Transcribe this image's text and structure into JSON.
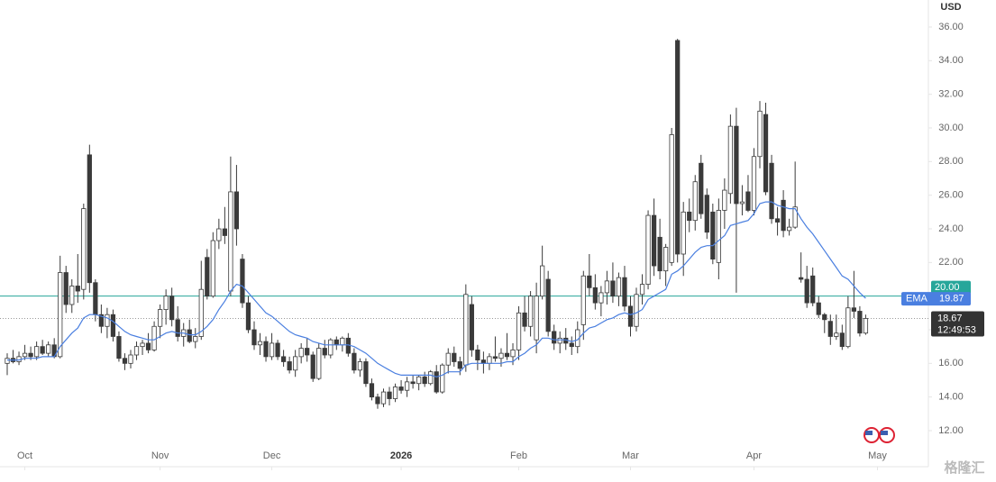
{
  "chart_data": {
    "type": "candlestick",
    "currency": "USD",
    "up_color": "#ffffff",
    "down_color": "#3a3a3a",
    "wick_color": "#3a3a3a",
    "xlim": [
      0,
      149
    ],
    "xticks": [
      {
        "value": 3,
        "label": "Oct"
      },
      {
        "value": 26,
        "label": "Nov"
      },
      {
        "value": 45,
        "label": "Dec"
      },
      {
        "value": 67,
        "label": "2026"
      },
      {
        "value": 87,
        "label": "Feb"
      },
      {
        "value": 106,
        "label": "Mar"
      },
      {
        "value": 127,
        "label": "Apr"
      },
      {
        "value": 148,
        "label": "May"
      }
    ],
    "ylim": [
      12,
      36
    ],
    "yticks": [
      {
        "value": 12,
        "label": "12.00"
      },
      {
        "value": 14,
        "label": "14.00"
      },
      {
        "value": 16,
        "label": "16.00"
      },
      {
        "value": 18,
        "label": "18.00"
      },
      {
        "value": 20,
        "label": "20.00"
      },
      {
        "value": 22,
        "label": "22.00"
      },
      {
        "value": 24,
        "label": "24.00"
      },
      {
        "value": 26,
        "label": "26.00"
      },
      {
        "value": 28,
        "label": "28.00"
      },
      {
        "value": 30,
        "label": "30.00"
      },
      {
        "value": 32,
        "label": "32.00"
      },
      {
        "value": 34,
        "label": "34.00"
      },
      {
        "value": 36,
        "label": "36.00"
      }
    ],
    "ohlc": [
      [
        16.0,
        16.6,
        15.3,
        16.3
      ],
      [
        16.3,
        16.8,
        16.0,
        16.1
      ],
      [
        16.1,
        16.7,
        15.9,
        16.4
      ],
      [
        16.4,
        17.1,
        16.2,
        16.6
      ],
      [
        16.6,
        17.0,
        16.2,
        16.4
      ],
      [
        16.4,
        17.3,
        16.2,
        17.0
      ],
      [
        17.0,
        17.4,
        16.5,
        16.6
      ],
      [
        16.6,
        17.3,
        16.4,
        17.1
      ],
      [
        17.1,
        17.5,
        16.3,
        16.4
      ],
      [
        16.4,
        22.4,
        16.3,
        21.4
      ],
      [
        21.4,
        21.8,
        19.0,
        19.5
      ],
      [
        19.5,
        21.0,
        19.0,
        20.6
      ],
      [
        20.6,
        22.5,
        19.6,
        20.3
      ],
      [
        20.4,
        25.5,
        19.8,
        25.2
      ],
      [
        28.4,
        29.0,
        20.2,
        20.8
      ],
      [
        20.8,
        21.0,
        18.5,
        18.9
      ],
      [
        18.9,
        19.5,
        17.8,
        18.2
      ],
      [
        18.2,
        19.3,
        17.5,
        18.9
      ],
      [
        18.9,
        19.2,
        17.3,
        17.6
      ],
      [
        17.6,
        17.9,
        16.1,
        16.3
      ],
      [
        16.3,
        16.6,
        15.6,
        16.0
      ],
      [
        16.0,
        16.8,
        15.7,
        16.5
      ],
      [
        16.5,
        17.3,
        16.2,
        17.0
      ],
      [
        17.0,
        17.4,
        16.5,
        17.2
      ],
      [
        17.2,
        17.8,
        16.6,
        16.8
      ],
      [
        16.8,
        18.5,
        16.7,
        18.2
      ],
      [
        18.2,
        19.5,
        17.5,
        19.2
      ],
      [
        19.2,
        20.4,
        18.3,
        20.0
      ],
      [
        20.0,
        20.5,
        18.2,
        18.6
      ],
      [
        18.6,
        19.4,
        17.3,
        17.6
      ],
      [
        17.6,
        18.4,
        17.0,
        18.0
      ],
      [
        18.0,
        18.6,
        17.2,
        17.3
      ],
      [
        17.3,
        18.1,
        16.9,
        17.6
      ],
      [
        17.6,
        22.1,
        17.4,
        20.4
      ],
      [
        22.3,
        22.8,
        19.8,
        20.0
      ],
      [
        20.0,
        23.8,
        19.9,
        23.3
      ],
      [
        23.3,
        24.6,
        22.8,
        24.0
      ],
      [
        24.0,
        25.3,
        23.1,
        23.6
      ],
      [
        20.3,
        28.3,
        20.0,
        26.2
      ],
      [
        26.2,
        27.8,
        23.0,
        24.0
      ],
      [
        22.2,
        22.5,
        19.3,
        19.6
      ],
      [
        19.6,
        20.0,
        17.8,
        18.0
      ],
      [
        18.0,
        18.5,
        16.8,
        17.1
      ],
      [
        17.1,
        17.8,
        16.5,
        17.3
      ],
      [
        17.3,
        17.6,
        16.1,
        16.4
      ],
      [
        16.4,
        17.8,
        16.2,
        17.2
      ],
      [
        17.2,
        17.4,
        16.2,
        16.4
      ],
      [
        16.4,
        16.8,
        15.8,
        16.1
      ],
      [
        16.1,
        16.4,
        15.4,
        15.6
      ],
      [
        15.6,
        16.8,
        15.2,
        16.4
      ],
      [
        16.4,
        17.2,
        16.0,
        16.9
      ],
      [
        16.9,
        17.5,
        16.1,
        16.5
      ],
      [
        16.5,
        16.7,
        14.9,
        15.1
      ],
      [
        15.1,
        17.2,
        15.0,
        16.9
      ],
      [
        16.9,
        17.4,
        16.3,
        16.5
      ],
      [
        16.5,
        17.5,
        16.3,
        17.4
      ],
      [
        17.4,
        17.6,
        16.8,
        17.1
      ],
      [
        17.1,
        17.6,
        16.7,
        17.5
      ],
      [
        17.5,
        17.8,
        16.4,
        16.6
      ],
      [
        16.6,
        16.9,
        15.4,
        15.6
      ],
      [
        15.6,
        16.3,
        15.2,
        16.1
      ],
      [
        16.1,
        16.3,
        14.6,
        14.8
      ],
      [
        14.8,
        15.1,
        13.8,
        14.0
      ],
      [
        14.0,
        14.2,
        13.3,
        13.6
      ],
      [
        13.6,
        14.5,
        13.4,
        14.3
      ],
      [
        14.3,
        14.6,
        13.5,
        13.9
      ],
      [
        13.9,
        14.8,
        13.7,
        14.6
      ],
      [
        14.6,
        15.0,
        14.2,
        14.4
      ],
      [
        14.4,
        15.2,
        14.0,
        14.9
      ],
      [
        14.9,
        15.3,
        14.5,
        14.8
      ],
      [
        14.8,
        15.3,
        14.4,
        15.2
      ],
      [
        15.2,
        15.5,
        14.6,
        14.8
      ],
      [
        14.8,
        15.6,
        14.7,
        15.5
      ],
      [
        15.5,
        15.9,
        14.2,
        14.3
      ],
      [
        14.3,
        16.0,
        14.2,
        15.9
      ],
      [
        15.9,
        16.9,
        15.4,
        16.6
      ],
      [
        16.6,
        17.0,
        15.8,
        16.1
      ],
      [
        16.1,
        16.4,
        15.3,
        15.7
      ],
      [
        15.9,
        20.7,
        15.5,
        20.1
      ],
      [
        19.5,
        20.0,
        16.4,
        16.8
      ],
      [
        16.8,
        17.1,
        15.6,
        16.2
      ],
      [
        16.2,
        16.7,
        15.4,
        16.0
      ],
      [
        16.0,
        16.6,
        15.6,
        16.4
      ],
      [
        16.4,
        17.6,
        16.1,
        16.3
      ],
      [
        16.3,
        16.9,
        15.8,
        16.6
      ],
      [
        16.6,
        17.8,
        16.2,
        16.4
      ],
      [
        16.4,
        17.2,
        15.9,
        16.8
      ],
      [
        16.8,
        19.4,
        16.2,
        19.0
      ],
      [
        19.0,
        20.0,
        17.9,
        18.2
      ],
      [
        18.2,
        20.3,
        17.6,
        20.0
      ],
      [
        17.4,
        20.8,
        16.6,
        20.0
      ],
      [
        20.0,
        23.0,
        19.8,
        21.8
      ],
      [
        21.0,
        21.5,
        17.6,
        17.9
      ],
      [
        17.9,
        18.3,
        16.8,
        17.2
      ],
      [
        17.2,
        17.9,
        16.6,
        17.5
      ],
      [
        17.5,
        18.1,
        16.8,
        17.2
      ],
      [
        17.2,
        17.6,
        16.5,
        17.0
      ],
      [
        17.0,
        18.5,
        16.6,
        18.0
      ],
      [
        18.3,
        21.5,
        17.4,
        21.2
      ],
      [
        21.2,
        22.5,
        20.0,
        20.5
      ],
      [
        20.5,
        21.3,
        19.2,
        19.6
      ],
      [
        19.6,
        20.6,
        18.8,
        20.2
      ],
      [
        20.2,
        21.5,
        19.5,
        20.9
      ],
      [
        20.9,
        22.0,
        19.6,
        20.0
      ],
      [
        20.0,
        21.4,
        19.4,
        21.1
      ],
      [
        21.1,
        21.8,
        19.1,
        19.4
      ],
      [
        19.4,
        20.0,
        17.6,
        18.2
      ],
      [
        18.2,
        20.5,
        17.9,
        20.1
      ],
      [
        20.1,
        21.3,
        19.5,
        20.7
      ],
      [
        20.7,
        25.1,
        20.4,
        24.8
      ],
      [
        24.8,
        25.8,
        21.2,
        21.8
      ],
      [
        23.5,
        24.6,
        21.0,
        21.5
      ],
      [
        21.5,
        23.1,
        20.6,
        22.9
      ],
      [
        22.0,
        30.0,
        21.8,
        29.6
      ],
      [
        35.2,
        35.3,
        22.0,
        22.5
      ],
      [
        22.5,
        25.6,
        21.2,
        25.0
      ],
      [
        25.0,
        25.8,
        23.8,
        24.5
      ],
      [
        24.5,
        27.2,
        23.9,
        26.8
      ],
      [
        27.9,
        28.4,
        24.6,
        24.9
      ],
      [
        26.0,
        26.4,
        23.4,
        23.8
      ],
      [
        25.0,
        25.5,
        21.9,
        22.2
      ],
      [
        22.0,
        25.8,
        21.0,
        25.1
      ],
      [
        25.1,
        27.0,
        24.0,
        26.3
      ],
      [
        26.1,
        30.8,
        25.5,
        30.1
      ],
      [
        30.1,
        31.2,
        20.2,
        25.5
      ],
      [
        25.5,
        26.6,
        24.8,
        25.6
      ],
      [
        26.2,
        27.2,
        25.0,
        25.1
      ],
      [
        25.1,
        28.8,
        24.8,
        28.3
      ],
      [
        28.3,
        31.6,
        27.6,
        31.0
      ],
      [
        30.8,
        31.5,
        26.0,
        26.2
      ],
      [
        27.9,
        28.4,
        24.3,
        24.6
      ],
      [
        24.6,
        25.3,
        23.6,
        24.4
      ],
      [
        25.7,
        26.3,
        23.5,
        23.9
      ],
      [
        23.9,
        24.6,
        23.6,
        24.1
      ],
      [
        24.1,
        28.0,
        24.0,
        25.3
      ],
      [
        21.1,
        22.6,
        20.8,
        21.0
      ],
      [
        21.0,
        21.8,
        19.3,
        19.6
      ],
      [
        21.2,
        21.7,
        19.4,
        19.6
      ],
      [
        19.6,
        20.0,
        18.7,
        18.9
      ],
      [
        18.9,
        19.0,
        17.8,
        18.6
      ],
      [
        18.5,
        18.9,
        17.1,
        17.6
      ],
      [
        17.6,
        18.9,
        17.4,
        17.8
      ],
      [
        17.8,
        18.3,
        16.8,
        17.0
      ],
      [
        17.0,
        20.0,
        16.9,
        19.3
      ],
      [
        19.3,
        21.5,
        18.7,
        19.1
      ],
      [
        19.1,
        19.4,
        17.6,
        17.8
      ],
      [
        17.8,
        18.9,
        17.7,
        18.67
      ]
    ],
    "ema": {
      "name": "EMA",
      "color": "#4a7fe0",
      "last": 19.87,
      "values": [
        16.2,
        16.2,
        16.2,
        16.3,
        16.3,
        16.3,
        16.4,
        16.4,
        16.4,
        17.0,
        17.4,
        17.8,
        18.1,
        18.7,
        18.9,
        18.9,
        18.8,
        18.7,
        18.5,
        18.2,
        17.9,
        17.7,
        17.6,
        17.5,
        17.4,
        17.4,
        17.6,
        17.8,
        17.9,
        17.8,
        17.8,
        17.7,
        17.7,
        17.9,
        18.2,
        18.6,
        19.2,
        19.7,
        20.3,
        20.7,
        20.6,
        20.2,
        19.8,
        19.4,
        19.0,
        18.8,
        18.5,
        18.2,
        17.9,
        17.7,
        17.6,
        17.5,
        17.3,
        17.2,
        17.1,
        17.1,
        17.1,
        17.1,
        17.1,
        17.0,
        16.8,
        16.6,
        16.3,
        16.0,
        15.8,
        15.6,
        15.4,
        15.3,
        15.3,
        15.3,
        15.3,
        15.3,
        15.3,
        15.2,
        15.3,
        15.5,
        15.5,
        15.5,
        15.9,
        16.0,
        16.0,
        16.0,
        16.0,
        16.0,
        16.0,
        16.1,
        16.1,
        16.4,
        16.6,
        16.9,
        17.1,
        17.5,
        17.5,
        17.4,
        17.4,
        17.4,
        17.3,
        17.4,
        17.8,
        18.1,
        18.2,
        18.4,
        18.6,
        18.7,
        18.9,
        19.0,
        18.9,
        19.0,
        19.2,
        19.8,
        20.0,
        20.2,
        20.4,
        21.3,
        21.5,
        21.8,
        22.2,
        22.6,
        22.9,
        23.0,
        23.0,
        23.3,
        23.6,
        24.2,
        24.3,
        24.4,
        24.5,
        24.9,
        25.5,
        25.6,
        25.6,
        25.4,
        25.3,
        25.2,
        25.2,
        24.6,
        24.1,
        23.7,
        23.2,
        22.7,
        22.2,
        21.7,
        21.2,
        21.0,
        20.6,
        20.2,
        19.87
      ]
    },
    "level_line": {
      "value": 20,
      "label": "20.00",
      "color": "#26a69a"
    },
    "last_price": 18.67,
    "countdown": "12:49:53",
    "watermark": "格隆汇"
  }
}
